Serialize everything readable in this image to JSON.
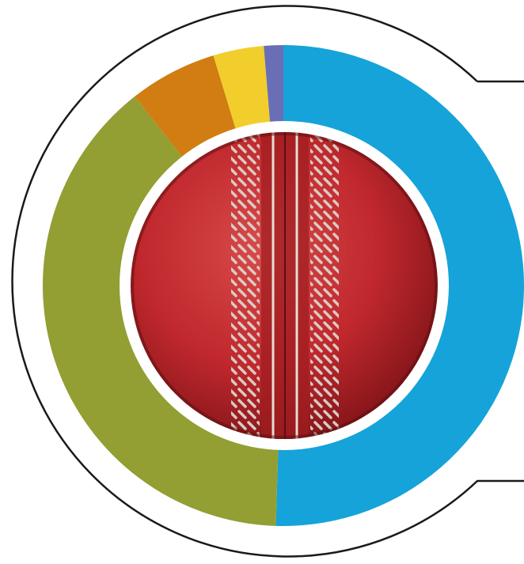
{
  "chart_data": {
    "type": "donut",
    "values": [
      50.5,
      38.9,
      5.9,
      3.4,
      1.3
    ],
    "colors": [
      "#15a3d9",
      "#939e33",
      "#d17d12",
      "#f1ce2b",
      "#6a6fb5"
    ]
  }
}
